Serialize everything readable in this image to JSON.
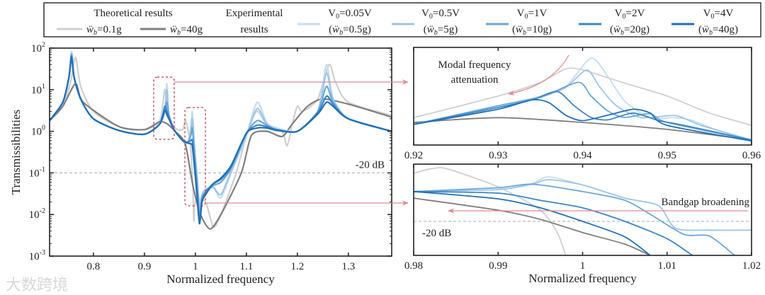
{
  "legend": {
    "theory_title": "Theoretical results",
    "theory_items": [
      {
        "sym": "ẅ",
        "sub": "b",
        "val": "=0.1g",
        "color": "#cfcfcf"
      },
      {
        "sym": "ẅ",
        "sub": "b",
        "val": "=40g",
        "color": "#7f7f7f"
      }
    ],
    "exp_title_1": "Experimental",
    "exp_title_2": "results",
    "exp_items": [
      {
        "v": "V",
        "v_sub": "0",
        "v_val": "=0.05V",
        "w_open": "(",
        "w": "ẅ",
        "w_sub": "b",
        "w_val": "=0.5g)",
        "color": "#c6dcef"
      },
      {
        "v": "V",
        "v_sub": "0",
        "v_val": "=0.5V",
        "w_open": "(",
        "w": "ẅ",
        "w_sub": "b",
        "w_val": "=5g)",
        "color": "#9ec5e6"
      },
      {
        "v": "V",
        "v_sub": "0",
        "v_val": "=1V",
        "w_open": "(",
        "w": "ẅ",
        "w_sub": "b",
        "w_val": "=10g)",
        "color": "#6aa6d8"
      },
      {
        "v": "V",
        "v_sub": "0",
        "v_val": "=2V",
        "w_open": "(",
        "w": "ẅ",
        "w_sub": "b",
        "w_val": "=20g)",
        "color": "#3a86c8"
      },
      {
        "v": "V",
        "v_sub": "0",
        "v_val": "=4V",
        "w_open": "(",
        "w": "ẅ",
        "w_sub": "b",
        "w_val": "=40g)",
        "color": "#1f6fb8"
      }
    ]
  },
  "watermark": "大数跨境",
  "chart_data": [
    {
      "type": "line",
      "title": "",
      "xlabel": "Normalized frequency",
      "ylabel": "Transmissibilities",
      "xlim": [
        0.714,
        1.385
      ],
      "ylim": [
        0.001,
        100
      ],
      "yscale": "log",
      "xticks": [
        0.8,
        0.9,
        1,
        1.1,
        1.2,
        1.3
      ],
      "xtick_labels": [
        "0.8",
        "0.9",
        "1",
        "1.1",
        "1.2",
        "1.3"
      ],
      "yticks": [
        0.001,
        0.01,
        0.1,
        1,
        10,
        100
      ],
      "ytick_labels": [
        {
          "base": "10",
          "exp": "-3"
        },
        {
          "base": "10",
          "exp": "-2"
        },
        {
          "base": "10",
          "exp": "-1"
        },
        {
          "base": "10",
          "exp": "0"
        },
        {
          "base": "10",
          "exp": "1"
        },
        {
          "base": "10",
          "exp": "2"
        }
      ],
      "reference_line": {
        "y": 0.1,
        "label": "-20 dB"
      },
      "series": [
        {
          "name": "Theoretical ẅb=0.1g",
          "color": "#cfcfcf",
          "x": [
            0.714,
            0.74,
            0.755,
            0.765,
            0.775,
            0.8,
            0.85,
            0.9,
            0.93,
            0.94,
            0.945,
            0.96,
            0.975,
            0.981,
            0.99,
            0.995,
            0.997,
            1.0,
            1.02,
            1.035,
            1.05,
            1.08,
            1.1,
            1.12,
            1.14,
            1.17,
            1.18,
            1.19,
            1.2,
            1.21,
            1.24,
            1.262,
            1.275,
            1.3,
            1.385
          ],
          "y": [
            1.8,
            4,
            15,
            60,
            12,
            3,
            1.3,
            1.1,
            1.8,
            10,
            3,
            1.2,
            1.1,
            1.8,
            0.5,
            0.05,
            0.007,
            0.02,
            0.02,
            0.005,
            0.01,
            0.1,
            0.8,
            3,
            1.5,
            1,
            0.45,
            1.5,
            4,
            3,
            6,
            40,
            15,
            5,
            2.4
          ]
        },
        {
          "name": "Theoretical ẅb=40g",
          "color": "#7f7f7f",
          "x": [
            0.714,
            0.74,
            0.765,
            0.78,
            0.85,
            0.9,
            0.93,
            0.945,
            0.96,
            0.98,
            0.995,
            1.01,
            1.029,
            1.05,
            1.09,
            1.11,
            1.14,
            1.17,
            1.19,
            1.22,
            1.25,
            1.3,
            1.385
          ],
          "y": [
            1.8,
            4,
            14,
            5,
            1.3,
            1.1,
            1.7,
            1.5,
            1.0,
            0.5,
            0.05,
            0.01,
            0.0045,
            0.01,
            0.1,
            0.8,
            1.0,
            0.75,
            1.5,
            4,
            6,
            4.5,
            2.2
          ]
        },
        {
          "name": "Experimental V0=0.05V (ẅb=0.5g)",
          "color": "#c6dcef",
          "x": [
            0.714,
            0.74,
            0.752,
            0.757,
            0.762,
            0.775,
            0.8,
            0.85,
            0.9,
            0.93,
            0.94,
            0.944,
            0.948,
            0.958,
            0.975,
            0.985,
            0.991,
            0.994,
            0.998,
            1.003,
            1.008,
            1.013,
            1.02,
            1.035,
            1.05,
            1.07,
            1.1,
            1.121,
            1.14,
            1.16,
            1.2,
            1.24,
            1.257,
            1.27,
            1.3,
            1.385
          ],
          "y": [
            1.8,
            5,
            20,
            85,
            20,
            6,
            2,
            1.05,
            0.85,
            1.5,
            3,
            14,
            2.5,
            1.1,
            0.6,
            0.55,
            1.2,
            3,
            0.5,
            0.1,
            0.02,
            0.03,
            0.04,
            0.045,
            0.025,
            0.1,
            0.8,
            5,
            1.6,
            1.2,
            1,
            3,
            40,
            6,
            2,
            1
          ]
        },
        {
          "name": "Experimental V0=0.5V (ẅb=5g)",
          "color": "#9ec5e6",
          "x": [
            0.714,
            0.74,
            0.752,
            0.757,
            0.762,
            0.775,
            0.8,
            0.85,
            0.9,
            0.93,
            0.94,
            0.944,
            0.948,
            0.958,
            0.975,
            0.985,
            0.991,
            0.994,
            0.998,
            1.003,
            1.008,
            1.013,
            1.02,
            1.035,
            1.05,
            1.07,
            1.1,
            1.121,
            1.14,
            1.16,
            1.2,
            1.24,
            1.257,
            1.27,
            1.3,
            1.385
          ],
          "y": [
            1.8,
            5,
            20,
            75,
            20,
            6,
            2,
            1.05,
            0.85,
            1.5,
            3,
            10,
            2.5,
            1.1,
            0.6,
            0.55,
            1,
            2,
            0.4,
            0.08,
            0.015,
            0.03,
            0.04,
            0.045,
            0.03,
            0.11,
            0.8,
            3.5,
            1.5,
            1.1,
            1,
            3,
            25,
            6,
            2,
            1
          ]
        },
        {
          "name": "Experimental V0=1V (ẅb=10g)",
          "color": "#6aa6d8",
          "x": [
            0.714,
            0.74,
            0.752,
            0.757,
            0.762,
            0.775,
            0.8,
            0.85,
            0.9,
            0.93,
            0.94,
            0.944,
            0.948,
            0.958,
            0.975,
            0.985,
            0.991,
            0.994,
            0.998,
            1.003,
            1.008,
            1.013,
            1.02,
            1.035,
            1.05,
            1.07,
            1.1,
            1.121,
            1.14,
            1.16,
            1.2,
            1.24,
            1.257,
            1.27,
            1.3,
            1.385
          ],
          "y": [
            1.8,
            5,
            20,
            70,
            20,
            6,
            2,
            1.05,
            0.85,
            1.5,
            3.5,
            5,
            2.5,
            1.1,
            0.6,
            0.55,
            0.8,
            1.2,
            0.3,
            0.06,
            0.01,
            0.025,
            0.035,
            0.05,
            0.06,
            0.13,
            0.9,
            1.8,
            1.4,
            1.1,
            1,
            3,
            12,
            5,
            2,
            1
          ]
        },
        {
          "name": "Experimental V0=2V (ẅb=20g)",
          "color": "#3a86c8",
          "x": [
            0.714,
            0.74,
            0.752,
            0.757,
            0.762,
            0.775,
            0.8,
            0.85,
            0.9,
            0.93,
            0.94,
            0.944,
            0.948,
            0.958,
            0.975,
            0.985,
            0.991,
            0.994,
            0.998,
            1.003,
            1.008,
            1.013,
            1.02,
            1.035,
            1.05,
            1.07,
            1.1,
            1.121,
            1.14,
            1.16,
            1.2,
            1.24,
            1.257,
            1.27,
            1.3,
            1.385
          ],
          "y": [
            1.8,
            5,
            20,
            65,
            20,
            6,
            2,
            1.05,
            0.85,
            1.5,
            4,
            3,
            2.2,
            1.1,
            0.6,
            0.55,
            0.6,
            0.6,
            0.2,
            0.04,
            0.008,
            0.022,
            0.035,
            0.055,
            0.07,
            0.14,
            0.9,
            1.4,
            1.3,
            1.1,
            1,
            2.8,
            7,
            4.5,
            2,
            1
          ]
        },
        {
          "name": "Experimental V0=4V (ẅb=40g)",
          "color": "#1f6fb8",
          "x": [
            0.714,
            0.74,
            0.752,
            0.757,
            0.762,
            0.775,
            0.8,
            0.85,
            0.9,
            0.93,
            0.94,
            0.944,
            0.948,
            0.958,
            0.975,
            0.985,
            0.991,
            0.994,
            0.998,
            1.003,
            1.008,
            1.013,
            1.02,
            1.035,
            1.05,
            1.07,
            1.1,
            1.121,
            1.14,
            1.16,
            1.2,
            1.24,
            1.257,
            1.27,
            1.3,
            1.385
          ],
          "y": [
            1.8,
            5,
            20,
            60,
            20,
            6,
            2,
            1.05,
            0.85,
            1.5,
            3.2,
            2.5,
            2,
            1.1,
            0.6,
            0.52,
            0.5,
            0.45,
            0.15,
            0.03,
            0.006,
            0.02,
            0.03,
            0.055,
            0.075,
            0.15,
            0.9,
            1.2,
            1.2,
            1.05,
            1,
            2.6,
            5,
            4,
            2,
            1
          ]
        }
      ]
    },
    {
      "type": "line",
      "title": "",
      "xlabel": "",
      "ylabel": "",
      "xlim": [
        0.92,
        0.96
      ],
      "ylim": [
        0.6,
        12
      ],
      "yscale": "log",
      "xticks": [
        0.92,
        0.93,
        0.94,
        0.95,
        0.96
      ],
      "xtick_labels": [
        "0.92",
        "0.93",
        "0.94",
        "0.95",
        "0.96"
      ],
      "annotation": {
        "line1": "Modal frequency",
        "line2": "attenuation"
      },
      "series": [
        {
          "name": "Theoretical ẅb=0.1g",
          "color": "#cfcfcf",
          "x": [
            0.92,
            0.93,
            0.935,
            0.938,
            0.94,
            0.945,
            0.95,
            0.955,
            0.96
          ],
          "y": [
            1.39,
            2.7,
            4.1,
            6.2,
            6.0,
            4.0,
            2.7,
            1.6,
            1.1
          ]
        },
        {
          "name": "Theoretical ẅb=40g",
          "color": "#7f7f7f",
          "x": [
            0.92,
            0.93,
            0.94,
            0.95,
            0.96
          ],
          "y": [
            1.2,
            1.39,
            1.2,
            0.97,
            0.7
          ]
        },
        {
          "name": "Experimental V0=0.05V",
          "color": "#c6dcef",
          "x": [
            0.92,
            0.93,
            0.935,
            0.938,
            0.941,
            0.943,
            0.945,
            0.948,
            0.951,
            0.953,
            0.956,
            0.96
          ],
          "y": [
            1.13,
            2.0,
            2.7,
            3.6,
            8.6,
            4.9,
            2.3,
            1.39,
            1.39,
            1.27,
            0.94,
            0.7
          ]
        },
        {
          "name": "Experimental V0=0.5V",
          "color": "#9ec5e6",
          "x": [
            0.92,
            0.93,
            0.935,
            0.938,
            0.9405,
            0.942,
            0.944,
            0.947,
            0.951,
            0.954,
            0.96
          ],
          "y": [
            1.13,
            2.0,
            2.6,
            3.5,
            6.0,
            3.6,
            2.0,
            1.39,
            1.48,
            1.1,
            0.7
          ]
        },
        {
          "name": "Experimental V0=1V",
          "color": "#6aa6d8",
          "x": [
            0.92,
            0.93,
            0.935,
            0.9395,
            0.941,
            0.943,
            0.945,
            0.948,
            0.95,
            0.96
          ],
          "y": [
            1.13,
            2.0,
            2.6,
            4.1,
            2.7,
            1.7,
            1.4,
            1.57,
            1.2,
            0.7
          ]
        },
        {
          "name": "Experimental V0=2V",
          "color": "#3a86c8",
          "x": [
            0.92,
            0.93,
            0.934,
            0.937,
            0.939,
            0.941,
            0.943,
            0.946,
            0.949,
            0.952,
            0.96
          ],
          "y": [
            1.13,
            1.9,
            2.4,
            3.1,
            2.0,
            1.4,
            1.3,
            1.6,
            1.27,
            1.1,
            0.7
          ]
        },
        {
          "name": "Experimental V0=4V",
          "color": "#1f6fb8",
          "x": [
            0.92,
            0.93,
            0.934,
            0.936,
            0.938,
            0.94,
            0.943,
            0.946,
            0.948,
            0.95,
            0.96
          ],
          "y": [
            1.13,
            1.8,
            2.4,
            2.2,
            1.5,
            1.27,
            1.5,
            1.8,
            1.6,
            1.1,
            0.68
          ]
        }
      ]
    },
    {
      "type": "line",
      "title": "",
      "xlabel": "Normalized frequency",
      "ylabel": "",
      "xlim": [
        0.98,
        1.02
      ],
      "ylim": [
        0.02,
        1.5
      ],
      "yscale": "log",
      "xticks": [
        0.98,
        0.99,
        1,
        1.01,
        1.02
      ],
      "xtick_labels": [
        "0.98",
        "0.99",
        "1",
        "1.01",
        "1.02"
      ],
      "reference_line": {
        "y": 0.1,
        "label": "-20 dB"
      },
      "annotation": {
        "line1": "Bandgap broadening"
      },
      "series": [
        {
          "name": "Theoretical ẅb=0.1g",
          "color": "#cfcfcf",
          "x": [
            0.98,
            0.982,
            0.984,
            0.99,
            0.995,
            0.997,
            0.998
          ],
          "y": [
            0.97,
            1.2,
            1.2,
            0.51,
            0.17,
            0.059,
            0.02
          ]
        },
        {
          "name": "Theoretical ẅb=40g",
          "color": "#7f7f7f",
          "x": [
            0.98,
            0.99,
            0.995,
            1.0,
            1.005,
            1.008
          ],
          "y": [
            0.3,
            0.17,
            0.11,
            0.059,
            0.034,
            0.02
          ]
        },
        {
          "name": "Experimental V0=0.05V",
          "color": "#c6dcef",
          "x": [
            0.98,
            0.99,
            0.994,
            0.996,
            1.0,
            1.005,
            1.009,
            1.011,
            1.015,
            1.02
          ],
          "y": [
            0.41,
            0.45,
            0.6,
            0.82,
            0.56,
            0.3,
            0.21,
            0.072,
            0.066,
            0.066
          ]
        },
        {
          "name": "Experimental V0=0.5V",
          "color": "#9ec5e6",
          "x": [
            0.98,
            0.99,
            0.994,
            0.996,
            1.0,
            1.005,
            1.009,
            1.011,
            1.015,
            1.02
          ],
          "y": [
            0.41,
            0.45,
            0.58,
            0.72,
            0.56,
            0.3,
            0.21,
            0.072,
            0.066,
            0.066
          ]
        },
        {
          "name": "Experimental V0=1V",
          "color": "#6aa6d8",
          "x": [
            0.98,
            0.99,
            0.994,
            1.0,
            1.005,
            1.008,
            1.012,
            1.015,
            1.018
          ],
          "y": [
            0.41,
            0.49,
            0.58,
            0.41,
            0.27,
            0.14,
            0.054,
            0.05,
            0.02
          ]
        },
        {
          "name": "Experimental V0=2V",
          "color": "#3a86c8",
          "x": [
            0.98,
            0.99,
            0.995,
            1.0,
            1.005,
            1.01,
            1.013
          ],
          "y": [
            0.41,
            0.38,
            0.27,
            0.19,
            0.1,
            0.044,
            0.02
          ]
        },
        {
          "name": "Experimental V0=4V",
          "color": "#1f6fb8",
          "x": [
            0.98,
            0.99,
            0.995,
            1.0,
            1.005,
            1.008
          ],
          "y": [
            0.41,
            0.29,
            0.19,
            0.1,
            0.048,
            0.02
          ]
        }
      ]
    }
  ]
}
